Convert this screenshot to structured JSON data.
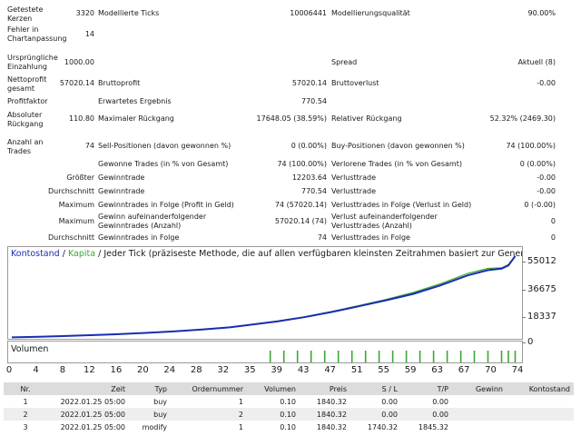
{
  "report": {
    "tested_bars_label": "Getestete Kerzen",
    "tested_bars_value": "3320",
    "modelled_ticks_label": "Modellierte Ticks",
    "modelled_ticks_value": "10006441",
    "modelling_quality_label": "Modellierungsqualität",
    "modelling_quality_value": "90.00%",
    "mismatch_errors_label": "Fehler in Chartanpassung",
    "mismatch_errors_value": "14",
    "initial_deposit_label": "Ursprüngliche Einzahlung",
    "initial_deposit_value": "1000.00",
    "spread_label": "Spread",
    "spread_value": "Aktuell (8)",
    "net_profit_label": "Nettoprofit gesamt",
    "net_profit_value": "57020.14",
    "gross_profit_label": "Bruttoprofit",
    "gross_profit_value": "57020.14",
    "gross_loss_label": "Bruttoverlust",
    "gross_loss_value": "-0.00",
    "profit_factor_label": "Profitfaktor",
    "profit_factor_value": "",
    "expected_payoff_label": "Erwartetes Ergebnis",
    "expected_payoff_value": "770.54",
    "absolute_drawdown_label": "Absoluter Rückgang",
    "absolute_drawdown_value": "110.80",
    "maximal_drawdown_label": "Maximaler Rückgang",
    "maximal_drawdown_value": "17648.05 (38.59%)",
    "relative_drawdown_label": "Relativer Rückgang",
    "relative_drawdown_value": "52.32% (2469.30)",
    "total_trades_label": "Anzahl an Trades",
    "total_trades_value": "74",
    "short_positions_label": "Sell-Positionen (davon gewonnen %)",
    "short_positions_value": "0 (0.00%)",
    "long_positions_label": "Buy-Positionen (davon gewonnen %)",
    "long_positions_value": "74 (100.00%)",
    "profit_trades_label": "Gewonne Trades (in % von Gesamt)",
    "profit_trades_value": "74 (100.00%)",
    "loss_trades_label": "Verlorene Trades (in % von Gesamt)",
    "loss_trades_value": "0 (0.00%)",
    "largest_label": "Größter",
    "largest_profit_label": "Gewinntrade",
    "largest_profit_value": "12203.64",
    "largest_loss_label": "Verlusttrade",
    "largest_loss_value": "-0.00",
    "average_label": "Durchschnitt",
    "average_profit_label": "Gewinntrade",
    "average_profit_value": "770.54",
    "average_loss_label": "Verlusttrade",
    "average_loss_value": "-0.00",
    "maximum_label": "Maximum",
    "max_consec_wins_label": "Gewinntrades in Folge (Profit in Geld)",
    "max_consec_wins_value": "74 (57020.14)",
    "max_consec_losses_label": "Verlusttrades in Folge (Verlust in Geld)",
    "max_consec_losses_value": "0 (-0.00)",
    "maximal_label": "Maximum",
    "max_consec_profit_label": "Gewinn aufeinanderfolgender Gewinntrades (Anzahl)",
    "max_consec_profit_value": "57020.14 (74)",
    "max_consec_loss_label": "Verlust aufeinanderfolgender Verlusttrades (Anzahl)",
    "max_consec_loss_value": "0",
    "average2_label": "Durchschnitt",
    "avg_consec_wins_label": "Gewinntrades in Folge",
    "avg_consec_wins_value": "74",
    "avg_consec_losses_label": "Verlusttrades in Folge",
    "avg_consec_losses_value": "0"
  },
  "chart": {
    "legend_balance": "Kontostand",
    "legend_separator": "/",
    "legend_equity": "Kapita",
    "mode_text": "/ Jeder Tick (präziseste Methode, die auf allen verfügbaren kleinsten Zeitrahmen basiert zur Generierung jedes Ticks",
    "volume_label": "Volumen",
    "colors": {
      "balance": "#1a2db0",
      "equity": "#3aa832",
      "volume": "#3aa832"
    }
  },
  "chart_data": {
    "type": "line",
    "title": "Kontostand / Kapita",
    "xlabel": "",
    "ylabel": "",
    "x_ticks": [
      "0",
      "4",
      "8",
      "12",
      "16",
      "20",
      "24",
      "28",
      "32",
      "35",
      "39",
      "43",
      "47",
      "51",
      "55",
      "59",
      "63",
      "67",
      "70",
      "74"
    ],
    "y_ticks": [
      "55012",
      "36675",
      "18337",
      "0"
    ],
    "xlim": [
      0,
      75
    ],
    "ylim": [
      0,
      58000
    ],
    "series": [
      {
        "name": "Kontostand",
        "x": [
          0,
          4,
          8,
          12,
          16,
          20,
          24,
          28,
          32,
          35,
          39,
          43,
          47,
          51,
          55,
          59,
          63,
          67,
          70,
          72,
          73,
          74
        ],
        "values": [
          1000,
          1400,
          2000,
          2600,
          3300,
          4200,
          5200,
          6500,
          8000,
          9800,
          12200,
          15200,
          18800,
          22800,
          27000,
          31500,
          37500,
          44500,
          48200,
          49200,
          51500,
          58020
        ]
      },
      {
        "name": "Kapita",
        "x": [
          0,
          4,
          8,
          12,
          16,
          20,
          24,
          28,
          32,
          35,
          39,
          43,
          47,
          51,
          55,
          59,
          63,
          67,
          70,
          72,
          73,
          74
        ],
        "values": [
          1000,
          1450,
          2050,
          2650,
          3350,
          4250,
          5300,
          6600,
          8100,
          9900,
          12400,
          15400,
          19100,
          23300,
          27600,
          32500,
          38600,
          45800,
          49400,
          49800,
          52100,
          58020
        ]
      }
    ],
    "volume": {
      "name": "Volumen",
      "x": [
        38,
        40,
        42,
        44,
        46,
        48,
        50,
        52,
        54,
        56,
        58,
        60,
        62,
        64,
        66,
        68,
        70,
        72,
        73,
        74
      ],
      "values": [
        1,
        1,
        1,
        1,
        1,
        1,
        1,
        1,
        1,
        1,
        1,
        1,
        1,
        1,
        1,
        1,
        1,
        1,
        1,
        1
      ]
    }
  },
  "orders": {
    "headers": [
      "Nr.",
      "Zeit",
      "Typ",
      "Ordernummer",
      "Volumen",
      "Preis",
      "S / L",
      "T/P",
      "Gewinn",
      "Kontostand"
    ],
    "rows": [
      [
        "1",
        "2022.01.25 05:00",
        "buy",
        "1",
        "0.10",
        "1840.32",
        "0.00",
        "0.00",
        "",
        ""
      ],
      [
        "2",
        "2022.01.25 05:00",
        "buy",
        "2",
        "0.10",
        "1840.32",
        "0.00",
        "0.00",
        "",
        ""
      ],
      [
        "3",
        "2022.01.25 05:00",
        "modify",
        "1",
        "0.10",
        "1840.32",
        "1740.32",
        "1845.32",
        "",
        ""
      ]
    ]
  }
}
